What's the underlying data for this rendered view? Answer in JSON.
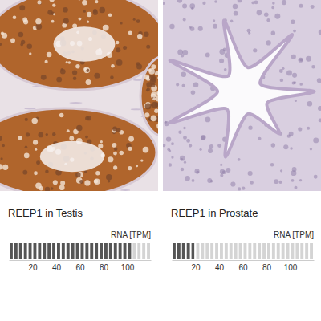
{
  "chart_data": [
    {
      "type": "bar",
      "orientation": "horizontal",
      "title": "REEP1 in Testis",
      "xlabel": "RNA [TPM]",
      "categories": [
        null
      ],
      "values": [
        104
      ],
      "xlim": [
        0,
        120
      ],
      "xticks": [
        20,
        40,
        60,
        80,
        100
      ],
      "color": "#555555"
    },
    {
      "type": "bar",
      "orientation": "horizontal",
      "title": "REEP1 in Prostate",
      "xlabel": "RNA [TPM]",
      "categories": [
        null
      ],
      "values": [
        19
      ],
      "xlim": [
        0,
        120
      ],
      "xticks": [
        20,
        40,
        60,
        80,
        100
      ],
      "color": "#555555"
    }
  ]
}
